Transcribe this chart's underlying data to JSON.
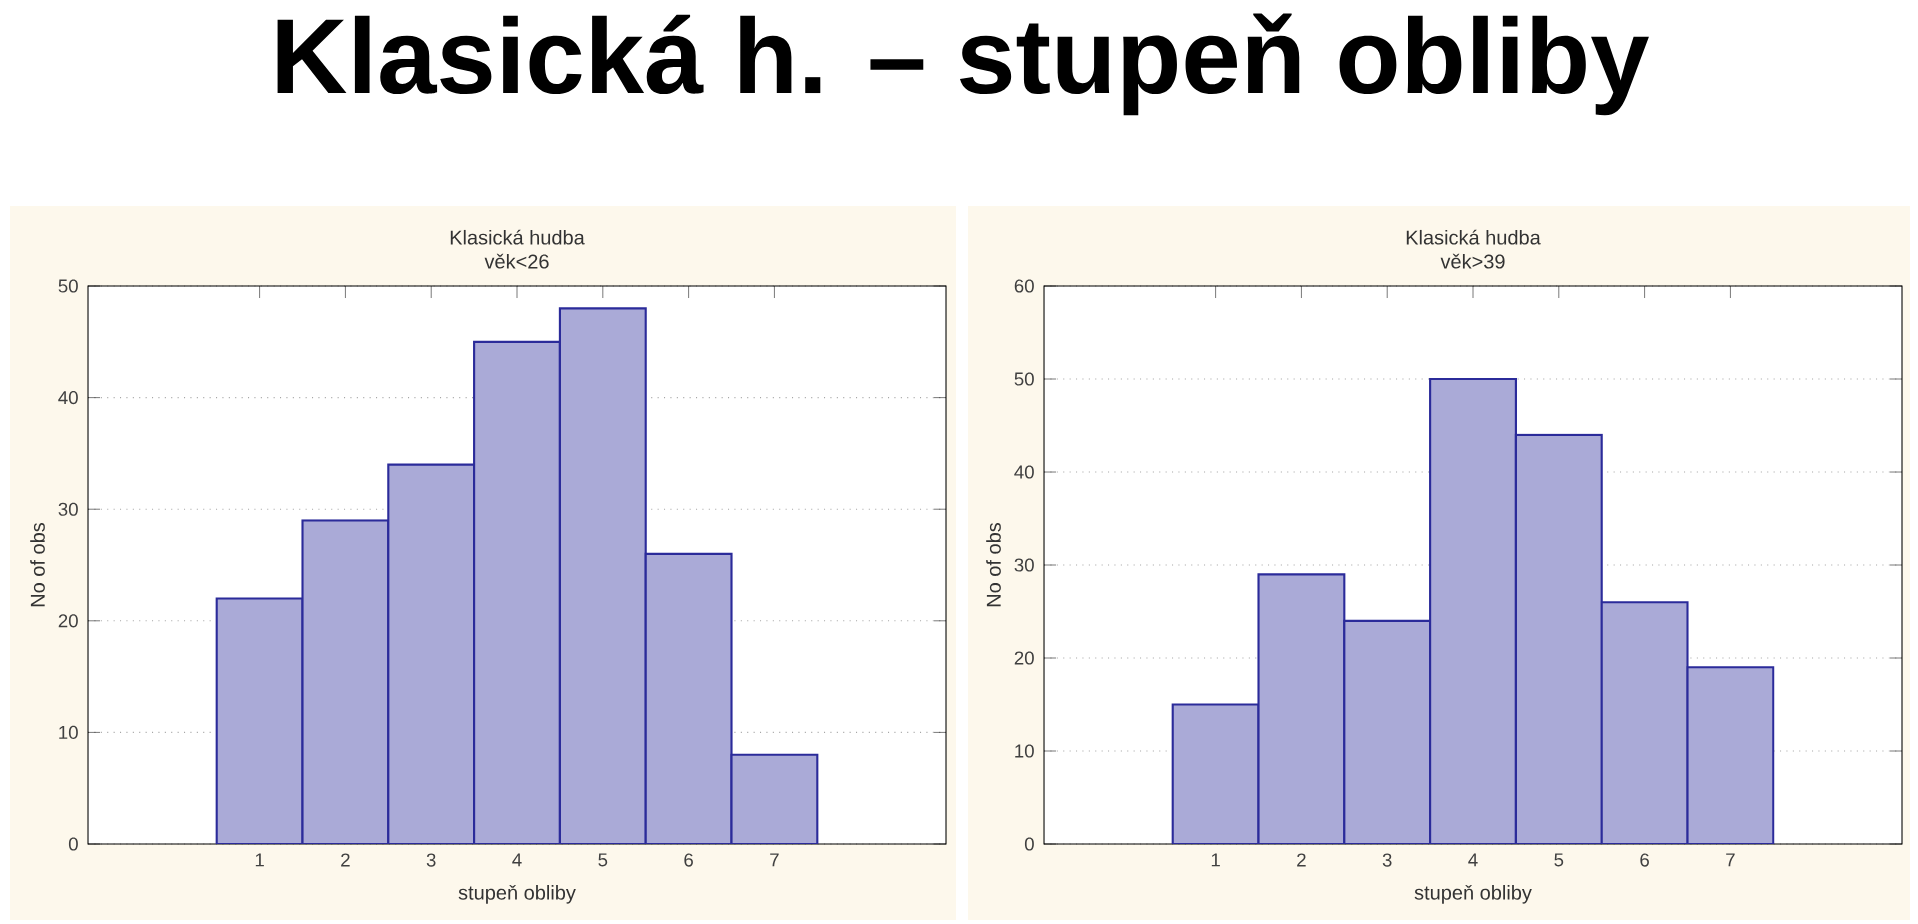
{
  "chart_data": [
    {
      "type": "histogram",
      "title": "Klasická hudba",
      "subtitle": "věk<26",
      "xlabel": "stupeň obliby",
      "ylabel": "No of obs",
      "annotations": [
        "Klasická h. – stupeň obliby"
      ],
      "bins": [
        0.5,
        1.5,
        2.5,
        3.5,
        4.5,
        5.5,
        6.5,
        7.5
      ],
      "values": [
        22,
        29,
        34,
        45,
        48,
        26,
        8
      ],
      "color": "#2b2b9a",
      "xlim": [
        -1,
        9
      ],
      "xticks": [
        1,
        2,
        3,
        4,
        5,
        6,
        7
      ],
      "ylim": [
        0,
        50
      ],
      "yticks": [
        0,
        10,
        20,
        30,
        40,
        50
      ],
      "grid": "y"
    },
    {
      "type": "histogram",
      "title": "Klasická hudba",
      "subtitle": "věk>39",
      "xlabel": "stupeň obliby",
      "ylabel": "No of obs",
      "bins": [
        0.5,
        1.5,
        2.5,
        3.5,
        4.5,
        5.5,
        6.5,
        7.5
      ],
      "values": [
        15,
        29,
        24,
        50,
        44,
        26,
        19
      ],
      "color": "#2b2b9a",
      "xlim": [
        -1,
        9
      ],
      "xticks": [
        1,
        2,
        3,
        4,
        5,
        6,
        7
      ],
      "ylim": [
        0,
        60
      ],
      "yticks": [
        0,
        10,
        20,
        30,
        40,
        50,
        60
      ],
      "grid": "y"
    }
  ]
}
